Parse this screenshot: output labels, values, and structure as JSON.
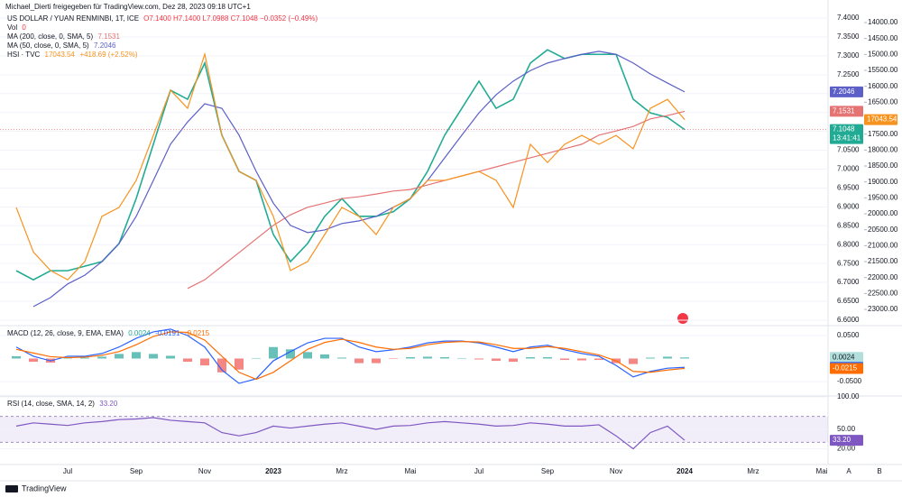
{
  "chart_data": [
    {
      "type": "line",
      "subtitle": "Michael_Dierti freigegeben für TradingView.com, Dez 28, 2023 09:18 UTC+1",
      "ohlc": "O7.1400  H7.1400  L7.0988  C7.1048  −0.0352 (−0.49%)",
      "volume_label": "Vol",
      "volume": "0",
      "countdown": "13:41:41",
      "grid": true,
      "ylim": [
        6.588,
        7.424
      ],
      "yticks": [
        {
          "value": 7.4,
          "label": "7.4000"
        },
        {
          "value": 7.35,
          "label": "7.3500"
        },
        {
          "value": 7.3,
          "label": "7.3000"
        },
        {
          "value": 7.25,
          "label": "7.2500"
        },
        {
          "value": 7.2,
          "label": "7.2000"
        },
        {
          "value": 7.15,
          "label": "7.1500"
        },
        {
          "value": 7.1,
          "label": "7.1000"
        },
        {
          "value": 7.05,
          "label": "7.0500"
        },
        {
          "value": 7,
          "label": "7.0000"
        },
        {
          "value": 6.95,
          "label": "6.9500"
        },
        {
          "value": 6.9,
          "label": "6.9000"
        },
        {
          "value": 6.85,
          "label": "6.8500"
        },
        {
          "value": 6.8,
          "label": "6.8000"
        },
        {
          "value": 6.75,
          "label": "6.7500"
        },
        {
          "value": 6.7,
          "label": "6.7000"
        },
        {
          "value": 6.65,
          "label": "6.6500"
        },
        {
          "value": 6.6,
          "label": "6.6000"
        }
      ],
      "y2lim": [
        23480,
        13575
      ],
      "y2ticks": [
        {
          "value": 14000,
          "label": "14000.00"
        },
        {
          "value": 14500,
          "label": "14500.00"
        },
        {
          "value": 15000,
          "label": "15000.00"
        },
        {
          "value": 15500,
          "label": "15500.00"
        },
        {
          "value": 16000,
          "label": "16000.00"
        },
        {
          "value": 16500,
          "label": "16500.00"
        },
        {
          "value": 17000,
          "label": "17000.00"
        },
        {
          "value": 17500,
          "label": "17500.00"
        },
        {
          "value": 18000,
          "label": "18000.00"
        },
        {
          "value": 18500,
          "label": "18500.00"
        },
        {
          "value": 19000,
          "label": "19000.00"
        },
        {
          "value": 19500,
          "label": "19500.00"
        },
        {
          "value": 20000,
          "label": "20000.00"
        },
        {
          "value": 20500,
          "label": "20500.00"
        },
        {
          "value": 21000,
          "label": "21000.00"
        },
        {
          "value": 21500,
          "label": "21500.00"
        },
        {
          "value": 22000,
          "label": "22000.00"
        },
        {
          "value": 22500,
          "label": "22500.00"
        },
        {
          "value": 23000,
          "label": "23000.00"
        }
      ],
      "series": [
        {
          "name": "US DOLLAR / YUAN RENMINBI, 1T, ICE",
          "color": "#22ab94",
          "values": [
            6.731,
            6.707,
            6.731,
            6.731,
            6.743,
            6.755,
            6.803,
            6.922,
            7.066,
            7.209,
            7.185,
            7.281,
            7.09,
            6.994,
            6.97,
            6.827,
            6.755,
            6.803,
            6.875,
            6.922,
            6.875,
            6.875,
            6.887,
            6.922,
            6.994,
            7.09,
            7.161,
            7.233,
            7.161,
            7.185,
            7.281,
            7.316,
            7.293,
            7.304,
            7.304,
            7.304,
            7.185,
            7.149,
            7.137,
            7.1048,
            null,
            null,
            null,
            null,
            null,
            null,
            null,
            null
          ]
        },
        {
          "name": "MA (200, close, 0, SMA, 5)",
          "color": "#e57373",
          "values": [
            null,
            null,
            null,
            null,
            null,
            null,
            null,
            null,
            null,
            null,
            6.684,
            6.707,
            6.743,
            6.779,
            6.815,
            6.851,
            6.879,
            6.899,
            6.91,
            6.922,
            6.927,
            6.934,
            6.942,
            6.946,
            6.958,
            6.97,
            6.982,
            6.994,
            7.006,
            7.018,
            7.03,
            7.042,
            7.054,
            7.066,
            7.09,
            7.101,
            7.113,
            7.133,
            7.142,
            7.1531,
            null,
            null,
            null,
            null,
            null,
            null,
            null,
            null
          ]
        },
        {
          "name": "MA (50, close, 0, SMA, 5)",
          "color": "#5b5fc7",
          "values": [
            null,
            6.636,
            6.66,
            6.696,
            6.719,
            6.755,
            6.803,
            6.875,
            6.97,
            7.066,
            7.125,
            7.173,
            7.161,
            7.09,
            6.994,
            6.91,
            6.851,
            6.832,
            6.839,
            6.856,
            6.863,
            6.875,
            6.899,
            6.922,
            6.97,
            7.03,
            7.09,
            7.149,
            7.197,
            7.233,
            7.261,
            7.281,
            7.293,
            7.304,
            7.312,
            7.304,
            7.281,
            7.252,
            7.228,
            7.2046,
            null,
            null,
            null,
            null,
            null,
            null,
            null,
            null
          ]
        },
        {
          "name": "HSI · TVC",
          "color": "#f7931e",
          "axis": "y2",
          "change": "+418.69 (+2.52%)",
          "values": [
            19800,
            21200,
            21780,
            22070,
            21500,
            20080,
            19800,
            18950,
            17540,
            16120,
            16690,
            14990,
            17540,
            18670,
            18950,
            20080,
            21780,
            21500,
            20650,
            19800,
            20080,
            20650,
            19800,
            19520,
            18950,
            18950,
            18810,
            18670,
            18950,
            19800,
            17820,
            18390,
            17820,
            17540,
            17820,
            17540,
            17960,
            16690,
            16410,
            17043.54,
            null,
            null,
            null,
            null,
            null,
            null,
            null,
            null
          ]
        }
      ]
    },
    {
      "type": "line",
      "title": "MACD (12, 26, close, 9, EMA, EMA)",
      "grid": true,
      "ylim": [
        -0.0775,
        0.0696
      ],
      "yticks": [
        {
          "value": 0.05,
          "label": "0.0500"
        },
        {
          "value": -0.05,
          "label": "-0.0500"
        }
      ],
      "series": [
        {
          "type": "bar",
          "color": "#26a69a",
          "negative_color": "#ef5350",
          "values": [
            0.005,
            -0.007,
            -0.009,
            0.003,
            0.002,
            0.004,
            0.01,
            0.014,
            0.01,
            0.006,
            -0.007,
            -0.015,
            -0.03,
            -0.024,
            0.001,
            0.025,
            0.02,
            0.014,
            0.009,
            0.002,
            -0.01,
            -0.01,
            -0.001,
            0.003,
            0.004,
            0.003,
            0.001,
            -0.002,
            -0.005,
            -0.007,
            0.003,
            0.003,
            -0.003,
            -0.004,
            -0.003,
            -0.01,
            -0.012,
            0.002,
            0.004,
            0.0024,
            null,
            null,
            null,
            null,
            null,
            null,
            null,
            null
          ]
        },
        {
          "color": "#2962ff",
          "values": [
            0.025,
            0.005,
            -0.005,
            0.005,
            0.005,
            0.011,
            0.025,
            0.044,
            0.058,
            0.064,
            0.05,
            0.025,
            -0.025,
            -0.054,
            -0.044,
            -0.005,
            0.015,
            0.034,
            0.044,
            0.044,
            0.025,
            0.015,
            0.019,
            0.025,
            0.034,
            0.038,
            0.038,
            0.034,
            0.025,
            0.015,
            0.025,
            0.029,
            0.019,
            0.011,
            0.005,
            -0.015,
            -0.04,
            -0.028,
            -0.021,
            -0.0191,
            null,
            null,
            null,
            null,
            null,
            null,
            null,
            null
          ]
        },
        {
          "color": "#ff6d00",
          "values": [
            0.02,
            0.012,
            0.004,
            0.002,
            0.003,
            0.007,
            0.015,
            0.03,
            0.048,
            0.058,
            0.057,
            0.04,
            0.005,
            -0.03,
            -0.045,
            -0.03,
            -0.005,
            0.02,
            0.035,
            0.042,
            0.035,
            0.025,
            0.02,
            0.022,
            0.03,
            0.035,
            0.037,
            0.036,
            0.03,
            0.022,
            0.022,
            0.026,
            0.022,
            0.015,
            0.008,
            -0.005,
            -0.028,
            -0.03,
            -0.025,
            -0.0215,
            null,
            null,
            null,
            null,
            null,
            null,
            null,
            null
          ]
        }
      ]
    },
    {
      "type": "line",
      "title": "RSI (14, close, SMA, 14, 2)",
      "grid": true,
      "ylim": [
        0,
        100
      ],
      "band": [
        30,
        70
      ],
      "yticks": [
        {
          "value": 100,
          "label": "100.00"
        },
        {
          "value": 50,
          "label": "50.00"
        },
        {
          "value": 20,
          "label": "20.00"
        }
      ],
      "categories": [
        null,
        null,
        null,
        "Jul",
        null,
        null,
        null,
        "Sep",
        null,
        null,
        null,
        "Nov",
        null,
        null,
        null,
        "2023",
        null,
        null,
        null,
        "Mrz",
        null,
        null,
        null,
        "Mai",
        null,
        null,
        null,
        "Jul",
        null,
        null,
        null,
        "Sep",
        null,
        null,
        null,
        "Nov",
        null,
        null,
        null,
        "2024",
        null,
        null,
        null,
        "Mrz",
        null,
        null,
        null,
        "Mai"
      ],
      "series": [
        {
          "color": "#7e57c2",
          "values": [
            55,
            60,
            58,
            56,
            60,
            62,
            65,
            66,
            68,
            64,
            62,
            60,
            45,
            40,
            45,
            55,
            52,
            55,
            58,
            60,
            55,
            50,
            55,
            56,
            60,
            62,
            60,
            58,
            55,
            56,
            60,
            58,
            55,
            55,
            57,
            40,
            20,
            45,
            55,
            33.2,
            null,
            null,
            null,
            null,
            null,
            null,
            null,
            null
          ],
          "value_labels": [
            null,
            null,
            null,
            null,
            null,
            null,
            null,
            null,
            null,
            null,
            null,
            null,
            null,
            null,
            null,
            null,
            null,
            null,
            null,
            null,
            null,
            null,
            null,
            null,
            null,
            null,
            null,
            null,
            null,
            null,
            null,
            null,
            null,
            null,
            null,
            null,
            null,
            null,
            null,
            "33.20",
            null,
            null,
            null,
            null,
            null,
            null,
            null,
            null
          ]
        }
      ]
    }
  ],
  "axis_buttons": [
    "A",
    "B"
  ],
  "footer": "TradingView"
}
